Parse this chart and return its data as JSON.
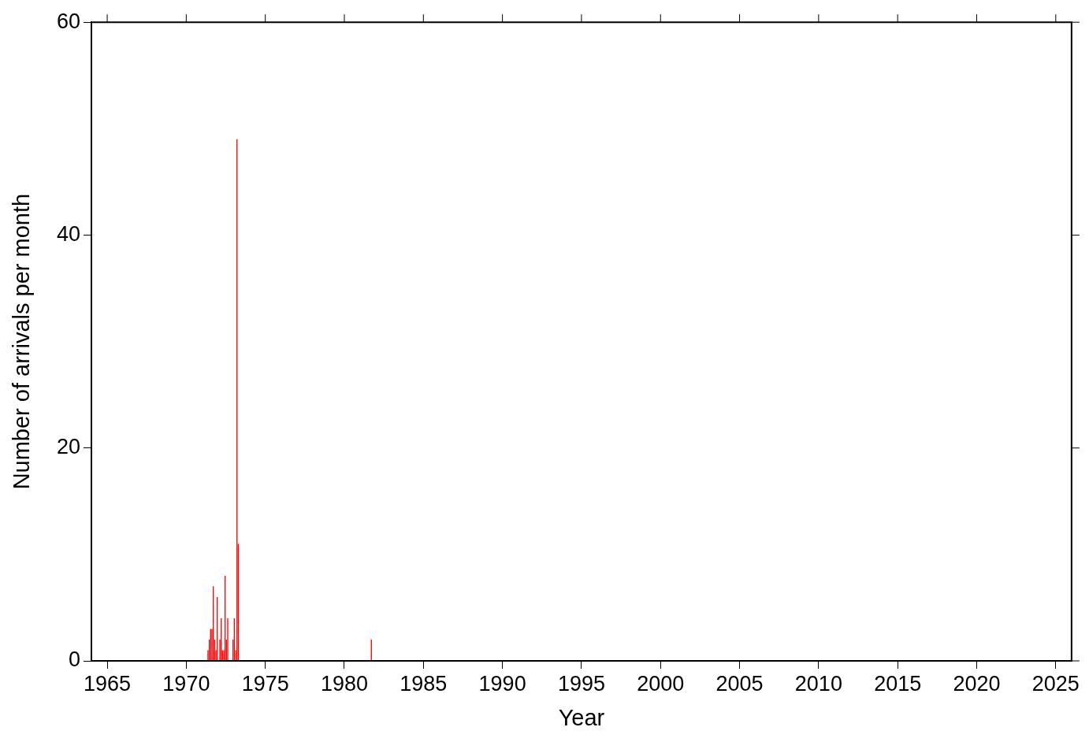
{
  "chart_data": {
    "type": "bar",
    "xlabel": "Year",
    "ylabel": "Number of arrivals per month",
    "x": [
      "1971-05",
      "1971-06",
      "1971-07",
      "1971-08",
      "1971-09",
      "1971-10",
      "1971-11",
      "1971-12",
      "1972-02",
      "1972-03",
      "1972-04",
      "1972-05",
      "1972-06",
      "1972-07",
      "1972-08",
      "1972-12",
      "1973-01",
      "1973-02",
      "1973-03",
      "1973-04",
      "1981-09"
    ],
    "values": [
      1,
      2,
      3,
      3,
      7,
      2,
      1,
      6,
      2,
      4,
      1,
      1,
      8,
      2,
      4,
      2,
      4,
      1,
      49,
      11,
      2
    ],
    "color": "#ff0000",
    "xlim": [
      "1964",
      "2026"
    ],
    "xticks": [
      "1965",
      "1970",
      "1975",
      "1980",
      "1985",
      "1990",
      "1995",
      "2000",
      "2005",
      "2010",
      "2015",
      "2020",
      "2025"
    ],
    "ylim": [
      0,
      60
    ],
    "yticks": [
      0,
      20,
      40,
      60
    ],
    "grid": false,
    "legend": false
  }
}
